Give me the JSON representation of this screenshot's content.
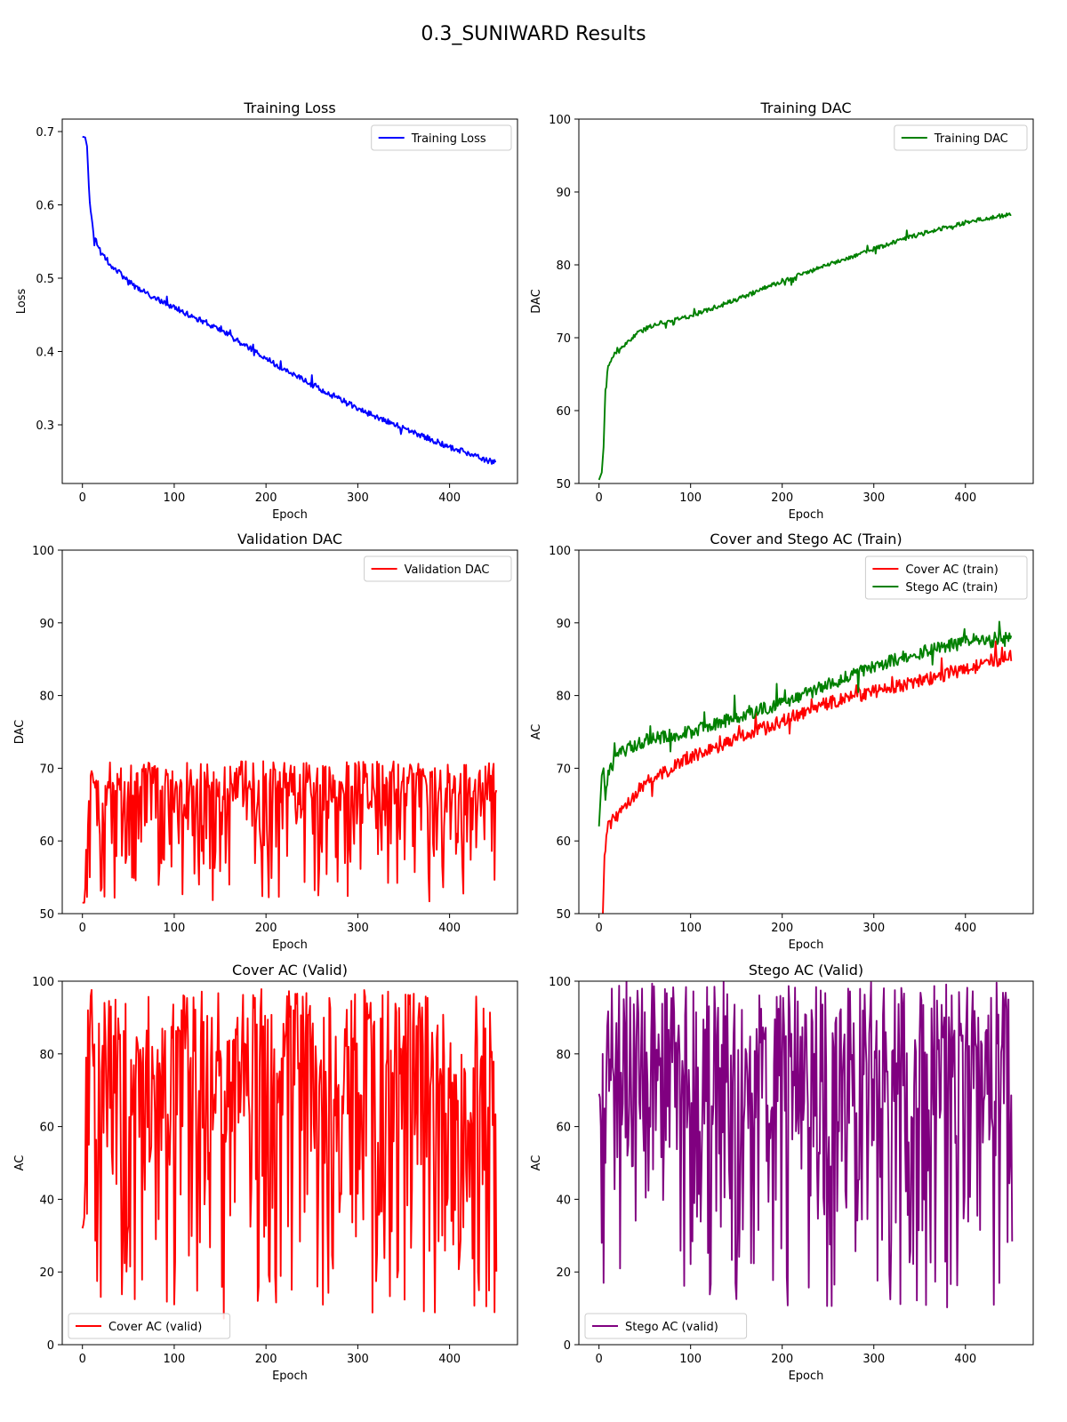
{
  "figure": {
    "title": "0.3_SUNIWARD Results"
  },
  "chart_data": [
    {
      "type": "line",
      "title": "Training Loss",
      "xlabel": "Epoch",
      "ylabel": "Loss",
      "xlim": [
        -22,
        474
      ],
      "ylim": [
        0.22,
        0.717
      ],
      "xticks": [
        0,
        100,
        200,
        300,
        400
      ],
      "yticks": [
        0.3,
        0.4,
        0.5,
        0.6,
        0.7
      ],
      "legend": "upper right",
      "grid": false,
      "series": [
        {
          "name": "Training Loss",
          "color": "#0000ff",
          "noise": 0.004,
          "points": [
            [
              0,
              0.693
            ],
            [
              3,
              0.692
            ],
            [
              5,
              0.68
            ],
            [
              8,
              0.6
            ],
            [
              12,
              0.56
            ],
            [
              20,
              0.535
            ],
            [
              30,
              0.52
            ],
            [
              50,
              0.495
            ],
            [
              75,
              0.475
            ],
            [
              100,
              0.46
            ],
            [
              150,
              0.43
            ],
            [
              200,
              0.39
            ],
            [
              250,
              0.355
            ],
            [
              300,
              0.322
            ],
            [
              350,
              0.295
            ],
            [
              400,
              0.27
            ],
            [
              450,
              0.248
            ]
          ]
        }
      ]
    },
    {
      "type": "line",
      "title": "Training DAC",
      "xlabel": "Epoch",
      "ylabel": "DAC",
      "xlim": [
        -22,
        474
      ],
      "ylim": [
        50,
        100
      ],
      "xticks": [
        0,
        100,
        200,
        300,
        400
      ],
      "yticks": [
        50,
        60,
        70,
        80,
        90,
        100
      ],
      "legend": "upper right",
      "grid": false,
      "series": [
        {
          "name": "Training DAC",
          "color": "#008000",
          "noise": 0.3,
          "points": [
            [
              0,
              50.5
            ],
            [
              3,
              51.5
            ],
            [
              5,
              55
            ],
            [
              7,
              63
            ],
            [
              10,
              66
            ],
            [
              15,
              67.5
            ],
            [
              25,
              68.5
            ],
            [
              40,
              70.5
            ],
            [
              60,
              71.8
            ],
            [
              100,
              73
            ],
            [
              150,
              75.2
            ],
            [
              200,
              77.8
            ],
            [
              250,
              80
            ],
            [
              300,
              82.2
            ],
            [
              350,
              84.2
            ],
            [
              400,
              85.8
            ],
            [
              450,
              87
            ]
          ]
        }
      ]
    },
    {
      "type": "line",
      "title": "Validation DAC",
      "xlabel": "Epoch",
      "ylabel": "DAC",
      "xlim": [
        -22,
        474
      ],
      "ylim": [
        50,
        100
      ],
      "xticks": [
        0,
        100,
        200,
        300,
        400
      ],
      "yticks": [
        50,
        60,
        70,
        80,
        90,
        100
      ],
      "legend": "upper right",
      "grid": false,
      "series": [
        {
          "name": "Validation DAC",
          "color": "#ff0000",
          "random": {
            "n": 452,
            "min": 51.5,
            "max": 71,
            "center": 66,
            "seed": 11,
            "start": [
              50.6,
              50.8,
              51.5,
              53.5,
              58.8,
              52.3,
              62,
              65.5,
              55
            ]
          }
        }
      ]
    },
    {
      "type": "line",
      "title": "Cover and Stego AC (Train)",
      "xlabel": "Epoch",
      "ylabel": "AC",
      "xlim": [
        -22,
        474
      ],
      "ylim": [
        50,
        100
      ],
      "xticks": [
        0,
        100,
        200,
        300,
        400
      ],
      "yticks": [
        50,
        60,
        70,
        80,
        90,
        100
      ],
      "legend": "upper right",
      "grid": false,
      "series": [
        {
          "name": "Cover AC (train)",
          "color": "#ff0000",
          "noise": 0.9,
          "points": [
            [
              0,
              45
            ],
            [
              4,
              49
            ],
            [
              6,
              58
            ],
            [
              10,
              62
            ],
            [
              20,
              63.5
            ],
            [
              50,
              68
            ],
            [
              100,
              71.5
            ],
            [
              150,
              74
            ],
            [
              200,
              76.5
            ],
            [
              250,
              79
            ],
            [
              300,
              80.5
            ],
            [
              350,
              82
            ],
            [
              400,
              83.5
            ],
            [
              450,
              85.5
            ]
          ]
        },
        {
          "name": "Stego AC (train)",
          "color": "#008000",
          "noise": 0.9,
          "points": [
            [
              0,
              62
            ],
            [
              3,
              69
            ],
            [
              5,
              70
            ],
            [
              7,
              66
            ],
            [
              10,
              69
            ],
            [
              20,
              72
            ],
            [
              50,
              73.8
            ],
            [
              100,
              75
            ],
            [
              150,
              77
            ],
            [
              200,
              79
            ],
            [
              250,
              81.5
            ],
            [
              300,
              84
            ],
            [
              350,
              86
            ],
            [
              400,
              87.5
            ],
            [
              450,
              88
            ]
          ]
        }
      ]
    },
    {
      "type": "line",
      "title": "Cover AC (Valid)",
      "xlabel": "Epoch",
      "ylabel": "AC",
      "xlim": [
        -22,
        474
      ],
      "ylim": [
        0,
        100
      ],
      "xticks": [
        0,
        100,
        200,
        300,
        400
      ],
      "yticks": [
        0,
        20,
        40,
        60,
        80,
        100
      ],
      "legend": "lower left",
      "grid": false,
      "series": [
        {
          "name": "Cover AC (valid)",
          "color": "#ff0000",
          "random": {
            "n": 452,
            "min": 7,
            "max": 98,
            "center": 64,
            "seed": 23,
            "start": [
              32,
              33,
              35,
              45,
              79,
              36,
              92,
              55
            ]
          }
        }
      ]
    },
    {
      "type": "line",
      "title": "Stego AC (Valid)",
      "xlabel": "Epoch",
      "ylabel": "AC",
      "xlim": [
        -22,
        474
      ],
      "ylim": [
        0,
        100
      ],
      "xticks": [
        0,
        100,
        200,
        300,
        400
      ],
      "yticks": [
        0,
        20,
        40,
        60,
        80,
        100
      ],
      "legend": "lower left",
      "grid": false,
      "series": [
        {
          "name": "Stego AC (valid)",
          "color": "#800080",
          "random": {
            "n": 452,
            "min": 10,
            "max": 100,
            "center": 67,
            "seed": 37,
            "start": [
              69,
              68,
              60,
              28,
              80,
              17,
              65,
              50
            ]
          }
        }
      ]
    }
  ]
}
